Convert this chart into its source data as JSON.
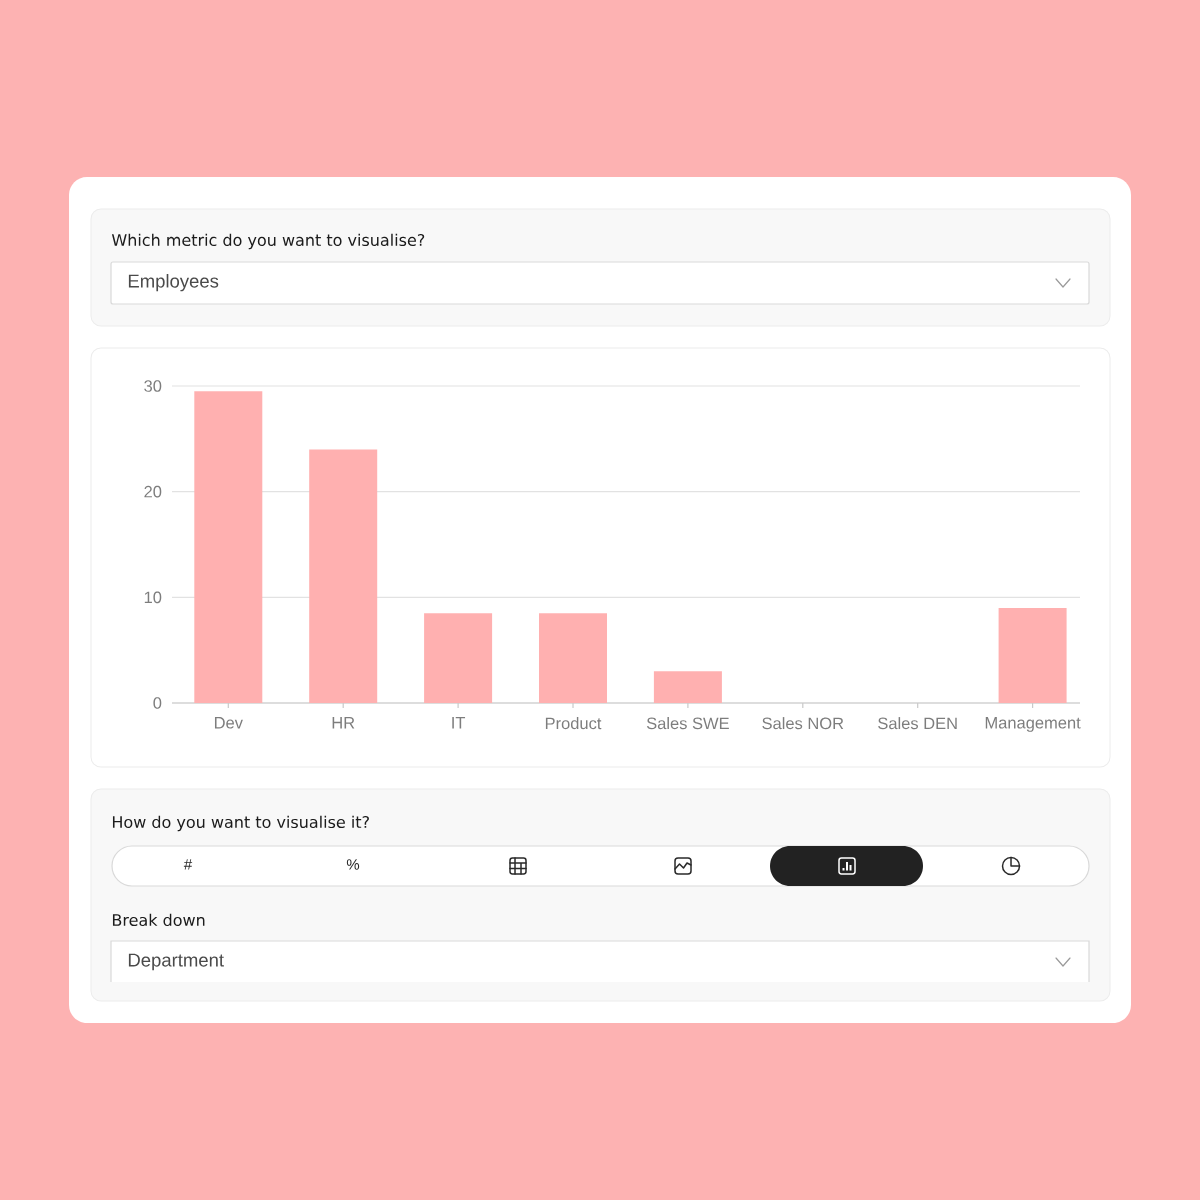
{
  "chart_data": {
    "type": "bar",
    "categories": [
      "Dev",
      "HR",
      "IT",
      "Product",
      "Sales SWE",
      "Sales NOR",
      "Sales DEN",
      "Management"
    ],
    "values": [
      29.5,
      24,
      8.5,
      8.5,
      3,
      0,
      0,
      9
    ],
    "color": "#ffb0b0",
    "ylim": [
      0,
      30
    ],
    "yticks": [
      0,
      10,
      20,
      30
    ],
    "grid": "y",
    "annotations": [
      "Which metric do you want to visualise?",
      "Employees",
      "How do you want to visualise it?",
      "#",
      "%",
      "Break down",
      "Department"
    ]
  }
}
